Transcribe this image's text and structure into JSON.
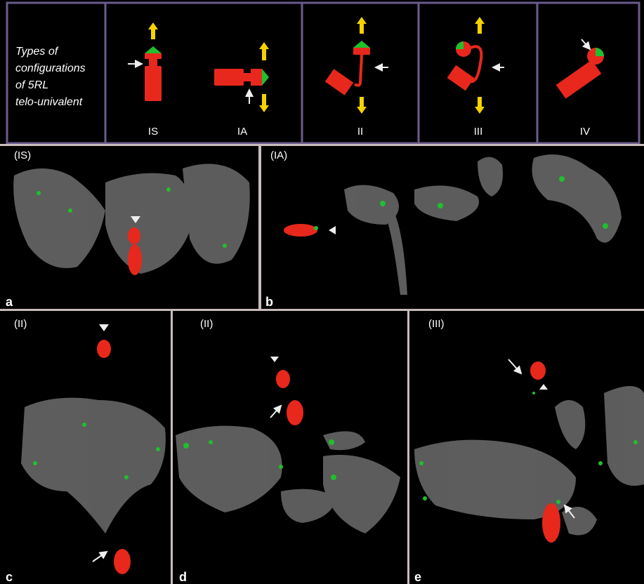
{
  "legend_panel": {
    "title_lines": [
      "Types of",
      "configurations",
      "of 5RL",
      "telo-univalent"
    ],
    "configurations": [
      "IS",
      "IA",
      "II",
      "III",
      "IV"
    ]
  },
  "panels": [
    {
      "letter": "a",
      "label": "(IS)"
    },
    {
      "letter": "b",
      "label": "(IA)"
    },
    {
      "letter": "c",
      "label": "(II)"
    },
    {
      "letter": "d",
      "label": "(II)"
    },
    {
      "letter": "e",
      "label": "(III)"
    }
  ]
}
